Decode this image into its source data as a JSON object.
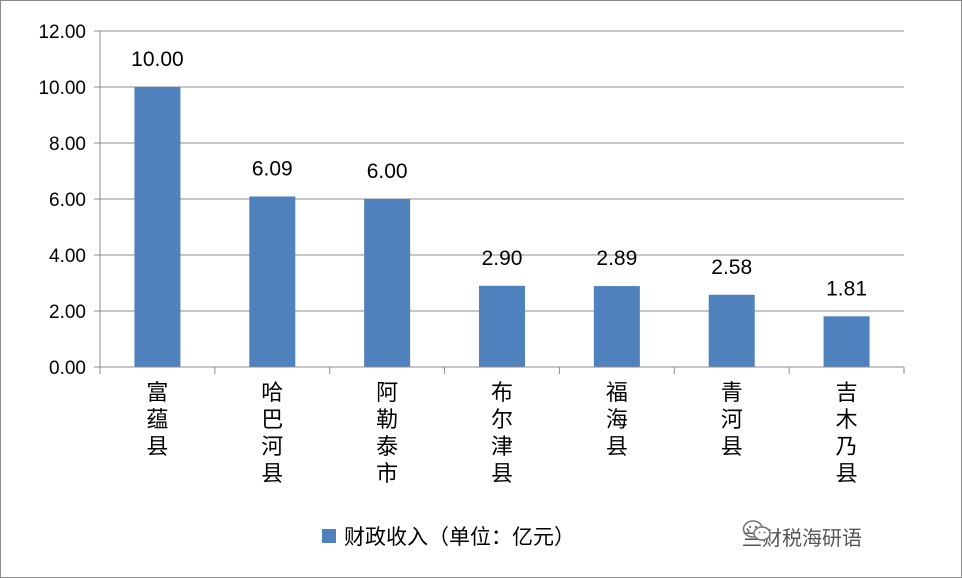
{
  "chart_data": {
    "type": "bar",
    "categories": [
      "富蕴县",
      "哈巴河县",
      "阿勒泰市",
      "布尔津县",
      "福海县",
      "青河县",
      "吉木乃县"
    ],
    "values": [
      10.0,
      6.09,
      6.0,
      2.9,
      2.89,
      2.58,
      1.81
    ],
    "data_labels": [
      "10.00",
      "6.09",
      "6.00",
      "2.90",
      "2.89",
      "2.58",
      "1.81"
    ],
    "yticks": [
      "0.00",
      "2.00",
      "4.00",
      "6.00",
      "8.00",
      "10.00",
      "12.00"
    ],
    "ylim": [
      0,
      12
    ],
    "grid": true,
    "legend_position": "bottom",
    "series": [
      {
        "name": "财政收入（单位：亿元）",
        "values": [
          10.0,
          6.09,
          6.0,
          2.9,
          2.89,
          2.58,
          1.81
        ]
      }
    ],
    "colors": {
      "bar": "#4f81bd",
      "grid": "#8c8c8c",
      "axis": "#8c8c8c"
    }
  },
  "legend": {
    "label": "财政收入（单位：亿元）"
  },
  "watermark": {
    "text": "兰财税海研语",
    "icon": "wechat-icon"
  }
}
